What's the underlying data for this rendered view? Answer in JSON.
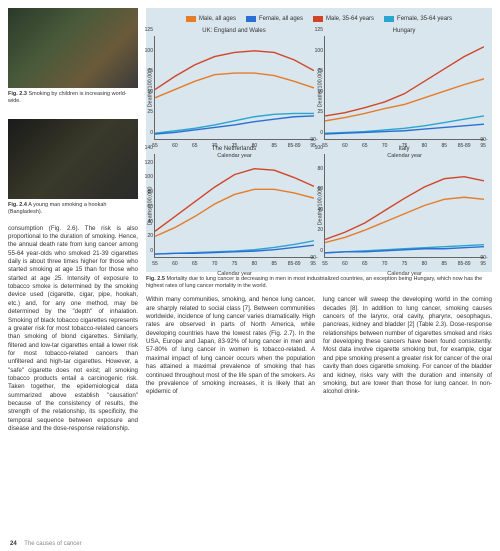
{
  "page_number": "24",
  "footer_text": "The causes of cancer",
  "photos": {
    "p1": {
      "fig": "Fig. 2.3",
      "caption": "Smoking by children is increasing world-wide."
    },
    "p2": {
      "fig": "Fig. 2.4",
      "caption": "A young man smoking a hookah (Bangladesh)."
    }
  },
  "left_body": "consumption (Fig. 2.6). The risk is also proportional to the duration of smoking. Hence, the annual death rate from lung cancer among 55-64 year-olds who smoked 21-39 cigarettes daily is about three times higher for those who started smoking at age 15 than for those who started at age 25.\nIntensity of exposure to tobacco smoke is determined by the smoking device used (cigarette, cigar, pipe, hookah, etc.) and, for any one method, may be determined by the \"depth\" of inhalation. Smoking of black tobacco cigarettes represents a greater risk for most tobacco-related cancers than smoking of blond cigarettes. Similarly, filtered and low-tar cigarettes entail a lower risk for most tobacco-related cancers than unfiltered and high-tar cigarettes. However, a \"safe\" cigarette does not exist; all smoking tobacco products entail a carcinogenic risk. Taken together, the epidemiological data summarized above establish \"causation\" because of the consistency of results, the strength of the relationship, its specificity, the temporal sequence between exposure and disease and the dose-response relationship.",
  "chart_fig": "Fig. 2.5",
  "chart_caption": "Mortality due to lung cancer is decreasing in men in most industrialized countries, an exception being Hungary, which now has the highest rates of lung cancer mortality in the world.",
  "legend_items": [
    {
      "label": "Male, all ages",
      "color": "#e57c2a"
    },
    {
      "label": "Female, all ages",
      "color": "#2a6fd4"
    },
    {
      "label": "Male, 35-64 years",
      "color": "#d0452a"
    },
    {
      "label": "Female, 35-64 years",
      "color": "#2aa5d0"
    }
  ],
  "chart_common": {
    "xlabel": "Calendar year",
    "ylabel": "Deaths/100,000",
    "xticks": [
      55,
      60,
      65,
      70,
      75,
      80,
      85,
      "85-89",
      "90-95"
    ],
    "x_positions": [
      0,
      12.5,
      25,
      37.5,
      50,
      62.5,
      75,
      87.5,
      100
    ],
    "background_color": "#d9e6ed",
    "axis_color": "#666666"
  },
  "charts": [
    {
      "title": "UK: England and Wales",
      "ymax": 125,
      "ytick_step": 25,
      "series": [
        {
          "color": "#d0452a",
          "values": [
            60,
            76,
            90,
            100,
            105,
            107,
            105,
            96,
            83
          ]
        },
        {
          "color": "#e57c2a",
          "values": [
            50,
            60,
            70,
            78,
            80,
            80,
            77,
            70,
            62
          ]
        },
        {
          "color": "#2aa5d0",
          "values": [
            7,
            10,
            13,
            17,
            22,
            27,
            30,
            31,
            31
          ]
        },
        {
          "color": "#2a6fd4",
          "values": [
            6,
            8,
            11,
            14,
            17,
            21,
            24,
            27,
            28
          ]
        }
      ]
    },
    {
      "title": "Hungary",
      "ymax": 125,
      "ytick_step": 25,
      "series": [
        {
          "color": "#d0452a",
          "values": [
            28,
            32,
            38,
            45,
            55,
            70,
            85,
            100,
            112
          ]
        },
        {
          "color": "#e57c2a",
          "values": [
            22,
            26,
            31,
            37,
            42,
            50,
            58,
            66,
            73
          ]
        },
        {
          "color": "#2aa5d0",
          "values": [
            7,
            8,
            9,
            11,
            13,
            16,
            20,
            24,
            28
          ]
        },
        {
          "color": "#2a6fd4",
          "values": [
            6,
            7,
            8,
            9,
            10,
            12,
            14,
            16,
            18
          ]
        }
      ]
    },
    {
      "title": "The Netherlands",
      "ymax": 140,
      "ytick_step": 20,
      "series": [
        {
          "color": "#d0452a",
          "values": [
            35,
            55,
            75,
            95,
            112,
            120,
            118,
            108,
            96
          ]
        },
        {
          "color": "#e57c2a",
          "values": [
            28,
            40,
            55,
            72,
            85,
            92,
            92,
            87,
            80
          ]
        },
        {
          "color": "#2aa5d0",
          "values": [
            4,
            5,
            6,
            7,
            8,
            10,
            13,
            17,
            22
          ]
        },
        {
          "color": "#2a6fd4",
          "values": [
            4,
            5,
            5,
            6,
            7,
            8,
            10,
            13,
            16
          ]
        }
      ]
    },
    {
      "title": "Italy",
      "ymax": 100,
      "ytick_step": 20,
      "series": [
        {
          "color": "#d0452a",
          "values": [
            17,
            24,
            33,
            45,
            57,
            68,
            76,
            78,
            74
          ]
        },
        {
          "color": "#e57c2a",
          "values": [
            14,
            19,
            26,
            34,
            42,
            50,
            56,
            58,
            56
          ]
        },
        {
          "color": "#2aa5d0",
          "values": [
            4,
            5,
            6,
            7,
            8,
            9,
            10,
            11,
            12
          ]
        },
        {
          "color": "#2a6fd4",
          "values": [
            4,
            5,
            5,
            6,
            7,
            8,
            8,
            9,
            10
          ]
        }
      ]
    }
  ],
  "col_mid": "Within many communities, smoking, and hence lung cancer, are sharply related to social class [7]. Between communities worldwide, incidence of lung cancer varies dramatically. High rates are observed in parts of North America, while developing countries have the lowest rates (Fig. 2.7). In the USA, Europe and Japan, 83-92% of lung cancer in men and 57-80% of lung cancer in women is tobacco-related. A maximal impact of lung cancer occurs when the population has attained a maximal prevalence of smoking that has continued throughout most of the life span of the smokers. As the prevalence of smoking increases, it is likely that an epidemic of",
  "col_right": "lung cancer will sweep the developing world in the coming decades [8].\nIn addition to lung cancer, smoking causes cancers of the larynx, oral cavity, pharynx, oesophagus, pancreas, kidney and bladder [2] (Table 2.3). Dose-response relationships between number of cigarettes smoked and risks for developing these cancers have been found consistently. Most data involve cigarette smoking but, for example, cigar and pipe smoking present a greater risk for cancer of the oral cavity than does cigarette smoking. For cancer of the bladder and kidney, risks vary with the duration and intensity of smoking, but are lower than those for lung cancer. In non-alcohol drink-"
}
